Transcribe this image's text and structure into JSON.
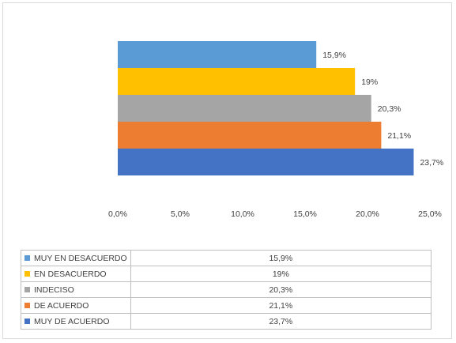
{
  "chart_data": {
    "type": "bar",
    "orientation": "horizontal",
    "categories": [
      "MUY EN DESACUERDO",
      "EN DESACUERDO",
      "INDECISO",
      "DE ACUERDO",
      "MUY DE ACUERDO"
    ],
    "values": [
      15.9,
      19,
      20.3,
      21.1,
      23.7
    ],
    "value_labels": [
      "15,9%",
      "19%",
      "20,3%",
      "21,1%",
      "23,7%"
    ],
    "colors": [
      "#5B9BD5",
      "#FFC000",
      "#A5A5A5",
      "#ED7D31",
      "#4472C4"
    ],
    "xlim": [
      0,
      25
    ],
    "xticks": [
      0,
      5,
      10,
      15,
      20,
      25
    ],
    "xtick_labels": [
      "0,0%",
      "5,0%",
      "10,0%",
      "15,0%",
      "20,0%",
      "25,0%"
    ],
    "grid": false,
    "legend": "data-table-below"
  },
  "table": {
    "rows": [
      {
        "label": "MUY EN DESACUERDO",
        "value": "15,9%",
        "color": "#5B9BD5"
      },
      {
        "label": "EN DESACUERDO",
        "value": "19%",
        "color": "#FFC000"
      },
      {
        "label": "INDECISO",
        "value": "20,3%",
        "color": "#A5A5A5"
      },
      {
        "label": "DE ACUERDO",
        "value": "21,1%",
        "color": "#ED7D31"
      },
      {
        "label": "MUY DE ACUERDO",
        "value": "23,7%",
        "color": "#4472C4"
      }
    ]
  }
}
